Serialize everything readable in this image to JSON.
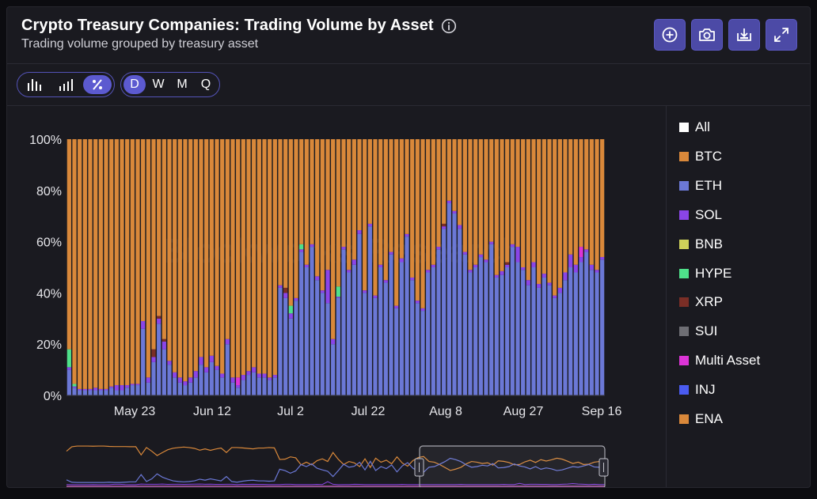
{
  "header": {
    "title": "Crypto Treasury Companies: Trading Volume by Asset",
    "subtitle": "Trading volume grouped by treasury asset",
    "info_icon": "info-icon",
    "tools": [
      {
        "name": "add-icon"
      },
      {
        "name": "camera-icon"
      },
      {
        "name": "download-icon"
      },
      {
        "name": "expand-icon"
      }
    ]
  },
  "controls": {
    "chart_modes": [
      {
        "icon": "bar-chart-icon",
        "active": false
      },
      {
        "icon": "stepped-bar-chart-icon",
        "active": false
      },
      {
        "icon": "percent-icon",
        "active": true
      }
    ],
    "intervals": [
      {
        "label": "D",
        "active": true
      },
      {
        "label": "W",
        "active": false
      },
      {
        "label": "M",
        "active": false
      },
      {
        "label": "Q",
        "active": false
      }
    ]
  },
  "watermark": "Blockworks Research",
  "legend": [
    {
      "label": "All",
      "color": "#ffffff"
    },
    {
      "label": "BTC",
      "color": "#d9883a"
    },
    {
      "label": "ETH",
      "color": "#6b78d6"
    },
    {
      "label": "SOL",
      "color": "#8a45e8"
    },
    {
      "label": "BNB",
      "color": "#cfd25a"
    },
    {
      "label": "HYPE",
      "color": "#4fe08a"
    },
    {
      "label": "XRP",
      "color": "#7a2e26"
    },
    {
      "label": "SUI",
      "color": "#6e6e74"
    },
    {
      "label": "Multi Asset",
      "color": "#dc34d6"
    },
    {
      "label": "INJ",
      "color": "#4a5bf0"
    },
    {
      "label": "ENA",
      "color": "#d9883a"
    }
  ],
  "chart_data": {
    "type": "bar",
    "stacking": "percent",
    "y_ticks": [
      "100%",
      "80%",
      "60%",
      "40%",
      "20%",
      "0%"
    ],
    "x_ticks": [
      "May 23",
      "Jun 12",
      "Jul 2",
      "Jul 22",
      "Aug 8",
      "Aug 27",
      "Sep 16"
    ],
    "ylim": [
      0,
      100
    ],
    "series_colors": {
      "BTC": "#d9883a",
      "ETH": "#6b78d6",
      "SOL": "#8a45e8",
      "HYPE": "#4fe08a",
      "XRP": "#7a2e26",
      "Multi Asset": "#dc34d6"
    },
    "series": [
      {
        "name": "ETH",
        "values": [
          10,
          3,
          2,
          2,
          2,
          2,
          2,
          2,
          3,
          2,
          2,
          3,
          4,
          4,
          26,
          5,
          13,
          28,
          18,
          12,
          7,
          5,
          4,
          5,
          7,
          12,
          9,
          13,
          10,
          7,
          20,
          5,
          3,
          6,
          8,
          9,
          7,
          7,
          6,
          7,
          42,
          38,
          30,
          37,
          56,
          50,
          58,
          45,
          40,
          36,
          20,
          38,
          57,
          48,
          51,
          63,
          40,
          66,
          38,
          50,
          44,
          55,
          34,
          52,
          62,
          45,
          36,
          33,
          48,
          50,
          57,
          65,
          75,
          71,
          65,
          55,
          48,
          50,
          54,
          52,
          59,
          46,
          47,
          50,
          58,
          52,
          49,
          43,
          50,
          42,
          46,
          43,
          38,
          40,
          45,
          50,
          48,
          52,
          56,
          49,
          48,
          53
        ]
      },
      {
        "name": "SOL",
        "values": [
          1.0,
          0.5,
          0.5,
          0.5,
          0.5,
          1.0,
          0.5,
          0.5,
          0.5,
          2.0,
          2.0,
          1.0,
          0.5,
          0.5,
          3.0,
          2.0,
          2.0,
          2.0,
          3.0,
          1.5,
          2.0,
          2.0,
          1.5,
          2.0,
          2.5,
          3.0,
          2.0,
          2.5,
          1.5,
          1.5,
          2.0,
          2.0,
          1.0,
          2.0,
          1.5,
          2.0,
          1.5,
          1.5,
          1.0,
          1.0,
          1.0,
          2.0,
          2.0,
          1.0,
          1.0,
          1.0,
          1.0,
          1.5,
          1.0,
          13.0,
          2.0,
          0.5,
          1.0,
          1.0,
          2.0,
          1.5,
          1.0,
          1.0,
          1.0,
          1.0,
          1.0,
          1.0,
          1.0,
          1.5,
          1.0,
          1.0,
          1.0,
          1.0,
          1.0,
          1.0,
          1.0,
          1.0,
          1.0,
          1.0,
          1.5,
          1.0,
          1.0,
          1.0,
          1.0,
          1.0,
          1.0,
          1.0,
          1.5,
          1.0,
          1.0,
          6.0,
          1.0,
          2.0,
          2.0,
          1.5,
          1.5,
          1.0,
          1.0,
          2.0,
          3.0,
          5.0,
          3.0,
          2.0,
          1.0,
          2.0,
          1.0,
          1.0
        ]
      },
      {
        "name": "HYPE",
        "values": [
          7,
          1,
          0,
          0,
          0,
          0,
          0,
          0,
          0,
          0,
          0,
          0,
          0,
          0,
          0,
          0,
          0,
          0,
          0,
          0,
          0,
          0,
          0,
          0,
          0,
          0,
          0,
          0,
          0,
          0,
          0,
          0,
          0,
          0,
          0,
          0,
          0,
          0,
          0,
          0,
          0,
          0,
          3,
          0,
          2,
          0,
          0,
          0,
          0,
          0,
          0,
          4,
          0,
          0,
          0,
          0,
          0,
          0,
          0,
          0,
          0,
          0,
          0,
          0,
          0,
          0,
          0,
          0,
          0,
          0,
          0,
          0,
          0,
          0,
          0,
          0,
          0,
          0,
          0,
          0,
          0,
          0,
          0,
          0,
          0,
          0,
          0,
          0,
          0,
          0,
          0,
          0,
          0,
          0,
          0,
          0,
          0,
          0,
          0,
          0,
          0,
          0
        ]
      },
      {
        "name": "XRP",
        "values": [
          0,
          0,
          0,
          0,
          0,
          0,
          0,
          0,
          0,
          0,
          0,
          0,
          0,
          0,
          0,
          0,
          3,
          1,
          1,
          0,
          0,
          0,
          0,
          0,
          0,
          0,
          0,
          0,
          0,
          0,
          0,
          0,
          0,
          0,
          0,
          0,
          0,
          0,
          0,
          0,
          0,
          2,
          0,
          0,
          0,
          0,
          0,
          0,
          0,
          0,
          0,
          0,
          0,
          0,
          0,
          0,
          0,
          0,
          0,
          0,
          0,
          0,
          0,
          0,
          0,
          0,
          0,
          0,
          0,
          0,
          0,
          1,
          0,
          0,
          0,
          0,
          0,
          0,
          0,
          0,
          0,
          0,
          0,
          1,
          0,
          0,
          0,
          0,
          0,
          0,
          0,
          0,
          0,
          0,
          0,
          0,
          0,
          0,
          0,
          0,
          0,
          0
        ]
      },
      {
        "name": "Multi Asset",
        "values": [
          0,
          0,
          0,
          0,
          0,
          0,
          0,
          0,
          0,
          0,
          0,
          0,
          0,
          0,
          0,
          0,
          0,
          0,
          0,
          0,
          0,
          0,
          0,
          0,
          0,
          0,
          0,
          0,
          0,
          0,
          0,
          0,
          3,
          0,
          0,
          0,
          0,
          0,
          0,
          0,
          0,
          0,
          0,
          0,
          0,
          0,
          0,
          0,
          0,
          0,
          0,
          0,
          0,
          0,
          0,
          0,
          0,
          0,
          0,
          0,
          0,
          0,
          0,
          0,
          0,
          0,
          0,
          0,
          0,
          0,
          0,
          0,
          0,
          0,
          0,
          0,
          0,
          0,
          0,
          0,
          0,
          0,
          0,
          0,
          0,
          0,
          0,
          0,
          0,
          0,
          0,
          0,
          0,
          0,
          0,
          0,
          0,
          4,
          0,
          0,
          0,
          0
        ]
      }
    ],
    "remainder_series": "BTC"
  }
}
